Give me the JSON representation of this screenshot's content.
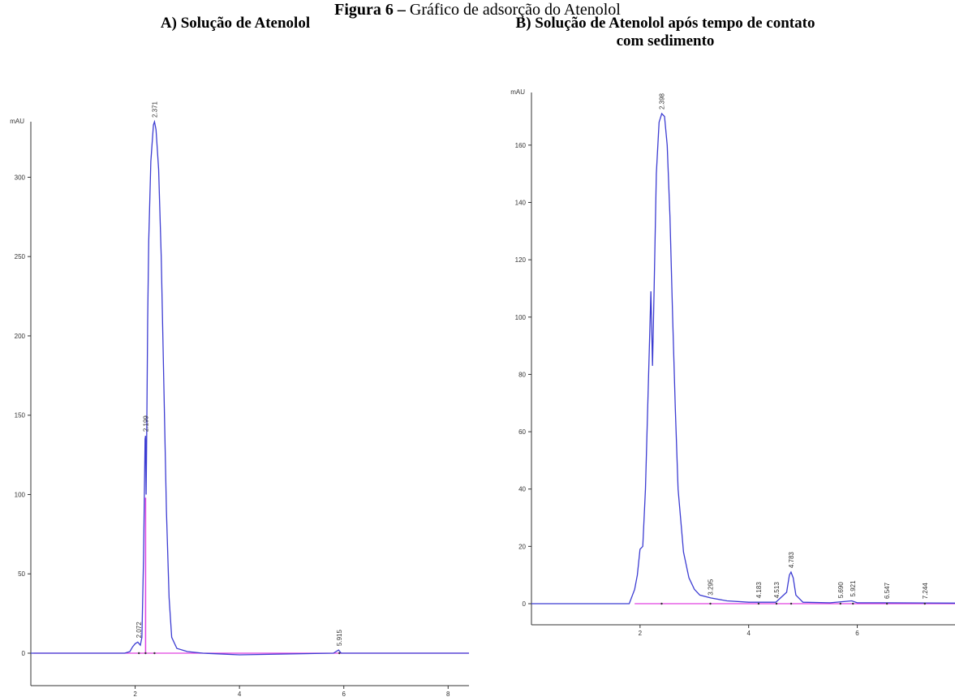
{
  "figure": {
    "title_bold": "Figura 6 –",
    "title_rest": " Gráfico de adsorção do Atenolol"
  },
  "chart_data": [
    {
      "type": "line",
      "panel_title": "A) Solução de Atenolol",
      "ylabel": "mAU",
      "xlim": [
        0,
        8.4
      ],
      "ylim": [
        -20,
        350
      ],
      "x_ticks": [
        2,
        4,
        6,
        8
      ],
      "y_ticks": [
        0,
        50,
        100,
        150,
        200,
        250,
        300
      ],
      "series": [
        {
          "color": "#3c3cd2",
          "x": [
            0,
            1.8,
            1.9,
            1.95,
            2.0,
            2.05,
            2.1,
            2.13,
            2.16,
            2.19,
            2.2,
            2.21,
            2.22,
            2.24,
            2.26,
            2.3,
            2.35,
            2.37,
            2.4,
            2.45,
            2.5,
            2.55,
            2.6,
            2.65,
            2.7,
            2.8,
            3.0,
            3.3,
            4.0,
            5.8,
            5.9,
            5.95,
            6.1,
            8.4
          ],
          "y": [
            0,
            0,
            1,
            4,
            6,
            7,
            5,
            10,
            60,
            135,
            137,
            100,
            130,
            210,
            260,
            310,
            333,
            335,
            330,
            305,
            250,
            170,
            90,
            35,
            10,
            3,
            1,
            0,
            -1,
            0,
            2,
            0,
            0,
            0
          ]
        }
      ],
      "baseline": {
        "color": "#e040e0",
        "x": [
          0.05,
          8.4
        ],
        "y": [
          0,
          0
        ]
      },
      "baseline_drop": {
        "x": 2.2,
        "top": 98,
        "color": "#e040e0"
      },
      "peaks": [
        {
          "x": 2.072,
          "y": 7,
          "label": "2.072"
        },
        {
          "x": 2.199,
          "y": 137,
          "label": "2.199"
        },
        {
          "x": 2.371,
          "y": 335,
          "label": "2.371"
        },
        {
          "x": 5.915,
          "y": 2,
          "label": "5.915"
        }
      ]
    },
    {
      "type": "line",
      "panel_title": "B) Solução de Atenolol após tempo de contato com sedimento",
      "panel_title_line1": "B) Solução de Atenolol após tempo de contato",
      "panel_title_line2": "com sedimento",
      "ylabel": "mAU",
      "xlim": [
        0,
        7.8
      ],
      "ylim": [
        -10,
        175
      ],
      "x_ticks": [
        2,
        4,
        6
      ],
      "y_ticks": [
        0,
        20,
        40,
        60,
        80,
        100,
        120,
        140,
        160
      ],
      "series": [
        {
          "color": "#3c3cd2",
          "x": [
            0,
            1.8,
            1.9,
            1.95,
            2.0,
            2.05,
            2.1,
            2.15,
            2.2,
            2.23,
            2.26,
            2.3,
            2.35,
            2.4,
            2.45,
            2.5,
            2.55,
            2.6,
            2.65,
            2.7,
            2.8,
            2.9,
            3.0,
            3.1,
            3.3,
            3.6,
            4.0,
            4.5,
            4.7,
            4.75,
            4.78,
            4.82,
            4.87,
            5.0,
            5.5,
            5.9,
            6.0,
            6.5,
            7.8
          ],
          "y": [
            0,
            0,
            5,
            10,
            19,
            20,
            40,
            75,
            109,
            83,
            110,
            150,
            168,
            171,
            170,
            160,
            135,
            100,
            68,
            40,
            18,
            9,
            5,
            3,
            2,
            1,
            0.5,
            0.5,
            4,
            10,
            11,
            9,
            3,
            0.5,
            0.3,
            1,
            0.3,
            0.3,
            0.2
          ]
        }
      ],
      "baseline": {
        "color": "#e040e0",
        "x": [
          1.9,
          7.8
        ],
        "y": [
          0,
          0
        ]
      },
      "peaks": [
        {
          "x": 2.398,
          "y": 171,
          "label": "2.398"
        },
        {
          "x": 3.295,
          "y": 1.5,
          "label": "3.295"
        },
        {
          "x": 4.183,
          "y": 0.5,
          "label": "4.183"
        },
        {
          "x": 4.513,
          "y": 0.5,
          "label": "4.513"
        },
        {
          "x": 4.783,
          "y": 11,
          "label": "4.783"
        },
        {
          "x": 5.69,
          "y": 0.5,
          "label": "5.690"
        },
        {
          "x": 5.921,
          "y": 1,
          "label": "5.921"
        },
        {
          "x": 6.547,
          "y": 0.3,
          "label": "6.547"
        },
        {
          "x": 7.244,
          "y": 0.2,
          "label": "7.244"
        }
      ]
    }
  ]
}
